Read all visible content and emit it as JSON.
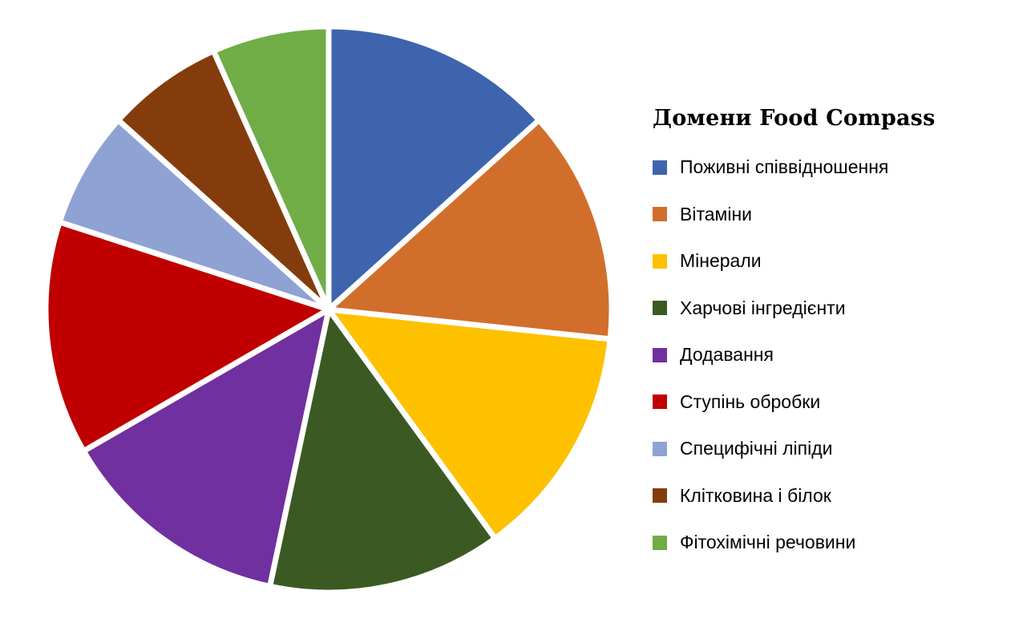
{
  "chart_data": {
    "type": "pie",
    "title": "",
    "legend_title": "Домени Food Compass",
    "legend_position": "right",
    "categories": [
      "Поживні співвідношення",
      "Вітаміни",
      "Мінерали",
      "Харчові інгредієнти",
      "Додавання",
      "Ступінь обробки",
      "Специфічні ліпіди",
      "Клітковина і білок",
      "Фітохімічні речовини"
    ],
    "values": [
      2,
      2,
      2,
      2,
      2,
      2,
      1,
      1,
      1
    ],
    "colors": [
      "#3e64ae",
      "#d26e2c",
      "#fdc100",
      "#3b5a23",
      "#7030a0",
      "#c00000",
      "#8fa2d4",
      "#843c0c",
      "#70ad47"
    ]
  }
}
